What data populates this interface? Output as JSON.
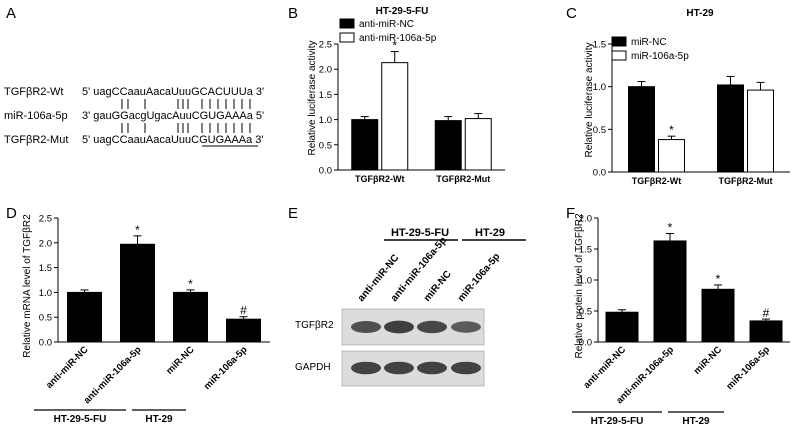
{
  "panels": {
    "A": {
      "letter": "A",
      "rows": [
        {
          "label": "TGFβR2-Wt",
          "seq": "5' uagCCaauAacaUuuGCACUUUa 3'"
        },
        {
          "label": "miR-106a-5p",
          "seq": "3' gauGGacgUgacAuuCGUGAAAa 5'"
        },
        {
          "label": "TGFβR2-Mut",
          "seq": "5' uagCCaauAacaUuuCGUGAAAa 3'"
        }
      ]
    },
    "E": {
      "letter": "E",
      "group_labels": [
        "HT-29-5-FU",
        "HT-29"
      ],
      "lanes": [
        "anti-miR-NC",
        "anti-miR-106a-5p",
        "miR-NC",
        "miR-106a-5p"
      ],
      "bands": [
        {
          "label": "TGFβR2",
          "intensity": [
            0.75,
            0.95,
            0.85,
            0.6
          ]
        },
        {
          "label": "GAPDH",
          "intensity": [
            0.9,
            0.9,
            0.9,
            0.9
          ]
        }
      ]
    }
  },
  "chart_data": [
    {
      "panel": "B",
      "type": "bar",
      "title": "HT-29-5-FU",
      "ylabel": "Relative luciferase activity",
      "ylim": [
        0,
        2.5
      ],
      "yticks": [
        "0.0",
        "0.5",
        "1.0",
        "1.5",
        "2.0",
        "2.5"
      ],
      "categories": [
        "TGFβR2-Wt",
        "TGFβR2-Mut"
      ],
      "legend": "top-left",
      "series": [
        {
          "name": "anti-miR-NC",
          "color": "#000000",
          "values": [
            1.0,
            0.98
          ],
          "errors": [
            0.06,
            0.08
          ]
        },
        {
          "name": "anti-miR-106a-5p",
          "color": "#ffffff",
          "values": [
            2.13,
            1.02
          ],
          "errors": [
            0.22,
            0.1
          ]
        }
      ],
      "annotations": [
        {
          "series": 1,
          "index": 0,
          "text": "*"
        }
      ]
    },
    {
      "panel": "C",
      "type": "bar",
      "title": "HT-29",
      "ylabel": "Relative luciferase activity",
      "ylim": [
        0,
        1.5
      ],
      "yticks": [
        "0.0",
        "0.5",
        "1.0",
        "1.5"
      ],
      "categories": [
        "TGFβR2-Wt",
        "TGFβR2-Mut"
      ],
      "legend": "top-left",
      "series": [
        {
          "name": "miR-NC",
          "color": "#000000",
          "values": [
            1.0,
            1.02
          ],
          "errors": [
            0.06,
            0.1
          ]
        },
        {
          "name": "miR-106a-5p",
          "color": "#ffffff",
          "values": [
            0.38,
            0.96
          ],
          "errors": [
            0.04,
            0.09
          ]
        }
      ],
      "annotations": [
        {
          "series": 1,
          "index": 0,
          "text": "*"
        }
      ]
    },
    {
      "panel": "D",
      "type": "bar",
      "ylabel": "Relative mRNA level of TGFβR2",
      "ylim": [
        0,
        2.5
      ],
      "yticks": [
        "0.0",
        "0.5",
        "1.0",
        "1.5",
        "2.0",
        "2.5"
      ],
      "categories": [
        "anti-miR-NC",
        "anti-miR-106a-5p",
        "miR-NC",
        "miR-106a-5p"
      ],
      "groups": [
        "HT-29-5-FU",
        "HT-29"
      ],
      "series": [
        {
          "color": "#000000",
          "values": [
            1.0,
            1.97,
            1.0,
            0.46
          ],
          "errors": [
            0.05,
            0.17,
            0.05,
            0.05
          ]
        }
      ],
      "annotations": [
        {
          "series": 0,
          "index": 1,
          "text": "*"
        },
        {
          "series": 0,
          "index": 2,
          "text": "*"
        },
        {
          "series": 0,
          "index": 3,
          "text": "#"
        }
      ]
    },
    {
      "panel": "F",
      "type": "bar",
      "ylabel": "Relative protein level of TGFβR2",
      "ylim": [
        0,
        2.0
      ],
      "yticks": [
        "0.0",
        "0.5",
        "1.0",
        "1.5",
        "2.0"
      ],
      "categories": [
        "anti-miR-NC",
        "anti-miR-106a-5p",
        "miR-NC",
        "miR-106a-5p"
      ],
      "groups": [
        "HT-29-5-FU",
        "HT-29"
      ],
      "series": [
        {
          "color": "#000000",
          "values": [
            0.48,
            1.63,
            0.85,
            0.34
          ],
          "errors": [
            0.04,
            0.12,
            0.07,
            0.03
          ]
        }
      ],
      "annotations": [
        {
          "series": 0,
          "index": 1,
          "text": "*"
        },
        {
          "series": 0,
          "index": 2,
          "text": "*"
        },
        {
          "series": 0,
          "index": 3,
          "text": "#"
        }
      ]
    }
  ]
}
